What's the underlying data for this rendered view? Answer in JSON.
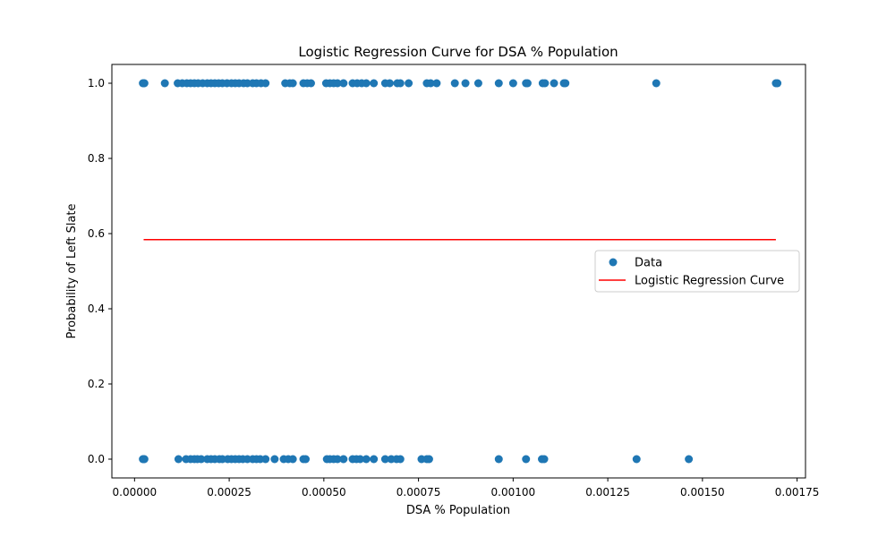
{
  "chart_data": {
    "type": "scatter",
    "title": "Logistic Regression Curve for DSA % Population",
    "xlabel": "DSA % Population",
    "ylabel": "Probability of Left Slate",
    "xlim": [
      -5.99e-05,
      0.0017722
    ],
    "ylim": [
      -0.05,
      1.05
    ],
    "xticks": [
      0.0,
      0.00025,
      0.0005,
      0.00075,
      0.001,
      0.00125,
      0.0015,
      0.00175
    ],
    "xtick_labels": [
      "0.00000",
      "0.00025",
      "0.00050",
      "0.00075",
      "0.00100",
      "0.00125",
      "0.00150",
      "0.00175"
    ],
    "yticks": [
      0.0,
      0.2,
      0.4,
      0.6,
      0.8,
      1.0
    ],
    "ytick_labels": [
      "0.0",
      "0.2",
      "0.4",
      "0.6",
      "0.8",
      "1.0"
    ],
    "grid": false,
    "legend_position": "center-right",
    "series": [
      {
        "name": "Data",
        "kind": "scatter",
        "color": "#1f77b4",
        "y1_x": [
          2.2e-05,
          2.4e-05,
          2.6e-05,
          8e-05,
          0.000114,
          0.000126,
          0.000138,
          0.000148,
          0.000158,
          0.000168,
          0.00018,
          0.000192,
          0.000202,
          0.000212,
          0.000222,
          0.000232,
          0.000244,
          0.000256,
          0.000266,
          0.000276,
          0.000288,
          0.000298,
          0.000312,
          0.000322,
          0.000334,
          0.000346,
          0.000398,
          0.00041,
          0.000418,
          0.000446,
          0.000456,
          0.000466,
          0.000506,
          0.000516,
          0.000526,
          0.000536,
          0.000552,
          0.000576,
          0.000588,
          0.0006,
          0.000612,
          0.000632,
          0.000662,
          0.000674,
          0.000694,
          0.000702,
          0.000724,
          0.000772,
          0.000782,
          0.000798,
          0.000846,
          0.000874,
          0.000908,
          0.000962,
          0.001,
          0.001034,
          0.001038,
          0.001078,
          0.001084,
          0.001108,
          0.001134,
          0.001138,
          0.001378,
          0.001694,
          0.001698
        ],
        "y0_x": [
          2.2e-05,
          2.4e-05,
          2.6e-05,
          0.000116,
          0.000136,
          0.000148,
          0.000158,
          0.000166,
          0.000176,
          0.000192,
          0.000202,
          0.000212,
          0.000224,
          0.000232,
          0.000246,
          0.000256,
          0.000266,
          0.000276,
          0.000286,
          0.000298,
          0.000312,
          0.000322,
          0.000332,
          0.000346,
          0.00037,
          0.000394,
          0.000406,
          0.000418,
          0.000446,
          0.000452,
          0.000508,
          0.000516,
          0.000526,
          0.000536,
          0.000552,
          0.000576,
          0.000586,
          0.000596,
          0.000612,
          0.000632,
          0.000662,
          0.000678,
          0.000692,
          0.000702,
          0.000758,
          0.000772,
          0.000778,
          0.000962,
          0.001034,
          0.001076,
          0.001082,
          0.001326,
          0.001464
        ]
      },
      {
        "name": "Logistic Regression Curve",
        "kind": "line",
        "color": "#ff0000",
        "x": [
          2.4e-05,
          0.001694
        ],
        "y": [
          0.584,
          0.584
        ]
      }
    ]
  }
}
